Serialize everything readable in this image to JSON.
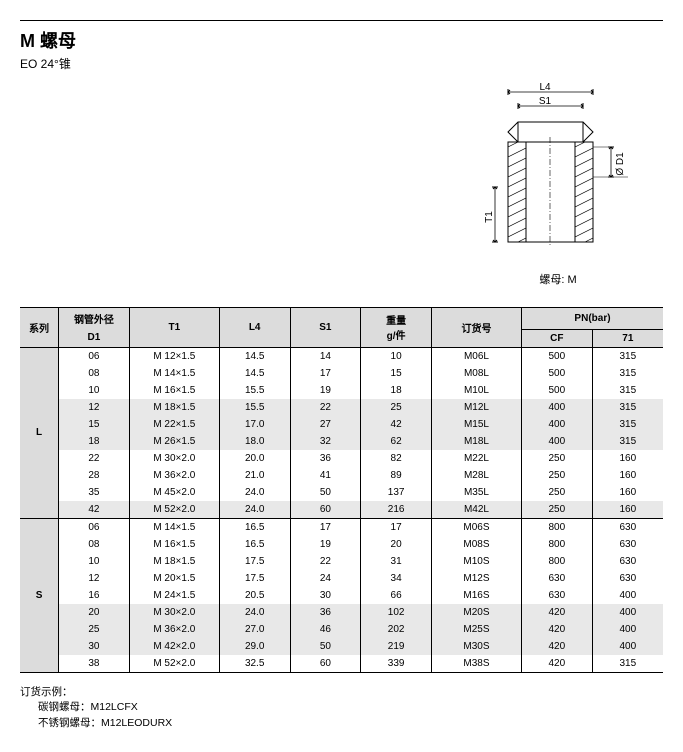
{
  "title": "M  螺母",
  "subtitle": "EO 24°锥",
  "diagram": {
    "caption": "螺母: M",
    "dims": {
      "L4": "L4",
      "S1": "S1",
      "T1": "T1",
      "D1": "Ø D1"
    },
    "colors": {
      "stroke": "#000000",
      "hatch": "#000000",
      "background": "#ffffff"
    }
  },
  "table": {
    "headers": {
      "series": "系列",
      "od_group": "钢管外径",
      "D1": "D1",
      "T1": "T1",
      "L4": "L4",
      "S1": "S1",
      "weight": "重量\ng/件",
      "order": "订货号",
      "pn": "PN(bar)",
      "CF": "CF",
      "c71": "71"
    },
    "groups": [
      {
        "series": "L",
        "rows": [
          {
            "D1": "06",
            "T1": "M 12×1.5",
            "L4": "14.5",
            "S1": "14",
            "w": "10",
            "ord": "M06L",
            "CF": "500",
            "c71": "315",
            "band": false
          },
          {
            "D1": "08",
            "T1": "M 14×1.5",
            "L4": "14.5",
            "S1": "17",
            "w": "15",
            "ord": "M08L",
            "CF": "500",
            "c71": "315",
            "band": false
          },
          {
            "D1": "10",
            "T1": "M 16×1.5",
            "L4": "15.5",
            "S1": "19",
            "w": "18",
            "ord": "M10L",
            "CF": "500",
            "c71": "315",
            "band": false
          },
          {
            "D1": "12",
            "T1": "M 18×1.5",
            "L4": "15.5",
            "S1": "22",
            "w": "25",
            "ord": "M12L",
            "CF": "400",
            "c71": "315",
            "band": true
          },
          {
            "D1": "15",
            "T1": "M 22×1.5",
            "L4": "17.0",
            "S1": "27",
            "w": "42",
            "ord": "M15L",
            "CF": "400",
            "c71": "315",
            "band": true
          },
          {
            "D1": "18",
            "T1": "M 26×1.5",
            "L4": "18.0",
            "S1": "32",
            "w": "62",
            "ord": "M18L",
            "CF": "400",
            "c71": "315",
            "band": true
          },
          {
            "D1": "22",
            "T1": "M 30×2.0",
            "L4": "20.0",
            "S1": "36",
            "w": "82",
            "ord": "M22L",
            "CF": "250",
            "c71": "160",
            "band": false
          },
          {
            "D1": "28",
            "T1": "M 36×2.0",
            "L4": "21.0",
            "S1": "41",
            "w": "89",
            "ord": "M28L",
            "CF": "250",
            "c71": "160",
            "band": false
          },
          {
            "D1": "35",
            "T1": "M 45×2.0",
            "L4": "24.0",
            "S1": "50",
            "w": "137",
            "ord": "M35L",
            "CF": "250",
            "c71": "160",
            "band": false
          },
          {
            "D1": "42",
            "T1": "M 52×2.0",
            "L4": "24.0",
            "S1": "60",
            "w": "216",
            "ord": "M42L",
            "CF": "250",
            "c71": "160",
            "band": true
          }
        ]
      },
      {
        "series": "S",
        "rows": [
          {
            "D1": "06",
            "T1": "M 14×1.5",
            "L4": "16.5",
            "S1": "17",
            "w": "17",
            "ord": "M06S",
            "CF": "800",
            "c71": "630",
            "band": false
          },
          {
            "D1": "08",
            "T1": "M 16×1.5",
            "L4": "16.5",
            "S1": "19",
            "w": "20",
            "ord": "M08S",
            "CF": "800",
            "c71": "630",
            "band": false
          },
          {
            "D1": "10",
            "T1": "M 18×1.5",
            "L4": "17.5",
            "S1": "22",
            "w": "31",
            "ord": "M10S",
            "CF": "800",
            "c71": "630",
            "band": false
          },
          {
            "D1": "12",
            "T1": "M 20×1.5",
            "L4": "17.5",
            "S1": "24",
            "w": "34",
            "ord": "M12S",
            "CF": "630",
            "c71": "630",
            "band": false
          },
          {
            "D1": "16",
            "T1": "M 24×1.5",
            "L4": "20.5",
            "S1": "30",
            "w": "66",
            "ord": "M16S",
            "CF": "630",
            "c71": "400",
            "band": false
          },
          {
            "D1": "20",
            "T1": "M 30×2.0",
            "L4": "24.0",
            "S1": "36",
            "w": "102",
            "ord": "M20S",
            "CF": "420",
            "c71": "400",
            "band": true
          },
          {
            "D1": "25",
            "T1": "M 36×2.0",
            "L4": "27.0",
            "S1": "46",
            "w": "202",
            "ord": "M25S",
            "CF": "420",
            "c71": "400",
            "band": true
          },
          {
            "D1": "30",
            "T1": "M 42×2.0",
            "L4": "29.0",
            "S1": "50",
            "w": "219",
            "ord": "M30S",
            "CF": "420",
            "c71": "400",
            "band": true
          },
          {
            "D1": "38",
            "T1": "M 52×2.0",
            "L4": "32.5",
            "S1": "60",
            "w": "339",
            "ord": "M38S",
            "CF": "420",
            "c71": "315",
            "band": false
          }
        ]
      }
    ],
    "col_widths_pct": [
      6,
      11,
      14,
      11,
      11,
      11,
      14,
      11,
      11
    ],
    "header_bg": "#dcdcdc",
    "band_bg": "#e8e8e8",
    "border_color": "#000000"
  },
  "footer": {
    "line1": "订货示例：",
    "line2": "碳钢螺母：M12LCFX",
    "line3": "不锈钢螺母：M12LEODURX"
  }
}
